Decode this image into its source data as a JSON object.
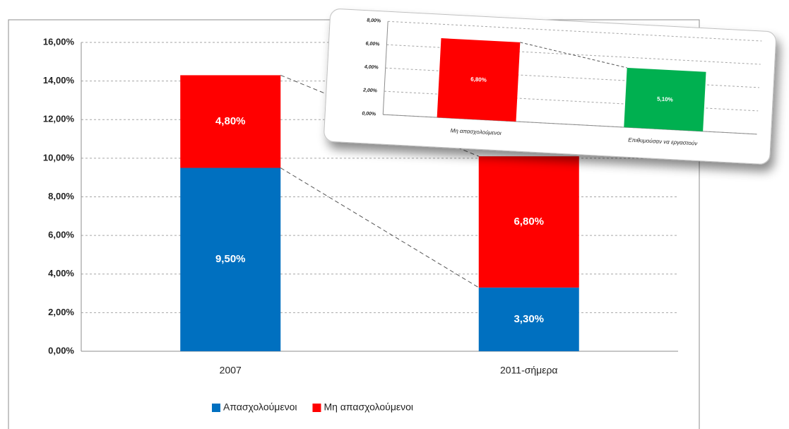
{
  "chart_data": [
    {
      "type": "bar",
      "stacked": true,
      "categories": [
        "2007",
        "2011-σήμερα"
      ],
      "series": [
        {
          "name": "Απασχολούμενοι",
          "color": "#0070c0",
          "values": [
            9.5,
            3.3
          ],
          "value_labels": [
            "9,50%",
            "3,30%"
          ]
        },
        {
          "name": "Μη απασχολούμενοι",
          "color": "#ff0000",
          "values": [
            4.8,
            6.8
          ],
          "value_labels": [
            "4,80%",
            "6,80%"
          ]
        }
      ],
      "ylim": [
        0,
        16
      ],
      "yticks": [
        {
          "value": 0,
          "label": "0,00%"
        },
        {
          "value": 2,
          "label": "2,00%"
        },
        {
          "value": 4,
          "label": "4,00%"
        },
        {
          "value": 6,
          "label": "6,00%"
        },
        {
          "value": 8,
          "label": "8,00%"
        },
        {
          "value": 10,
          "label": "10,00%"
        },
        {
          "value": 12,
          "label": "12,00%"
        },
        {
          "value": 14,
          "label": "14,00%"
        },
        {
          "value": 16,
          "label": "16,00%"
        }
      ],
      "grid": true,
      "legend": "bottom"
    },
    {
      "type": "bar",
      "stacked": false,
      "categories": [
        "Μη απασχολούμενοι",
        "Επιθυμούσαν να εργαστούν"
      ],
      "values": [
        6.8,
        5.1
      ],
      "value_labels": [
        "6,80%",
        "5,10%"
      ],
      "colors": [
        "#ff0000",
        "#00b050"
      ],
      "ylim": [
        0,
        8
      ],
      "yticks": [
        {
          "value": 0,
          "label": "0,00%"
        },
        {
          "value": 2,
          "label": "2,00%"
        },
        {
          "value": 4,
          "label": "4,00%"
        },
        {
          "value": 6,
          "label": "6,00%"
        },
        {
          "value": 8,
          "label": "8,00%"
        }
      ],
      "grid": true
    }
  ]
}
